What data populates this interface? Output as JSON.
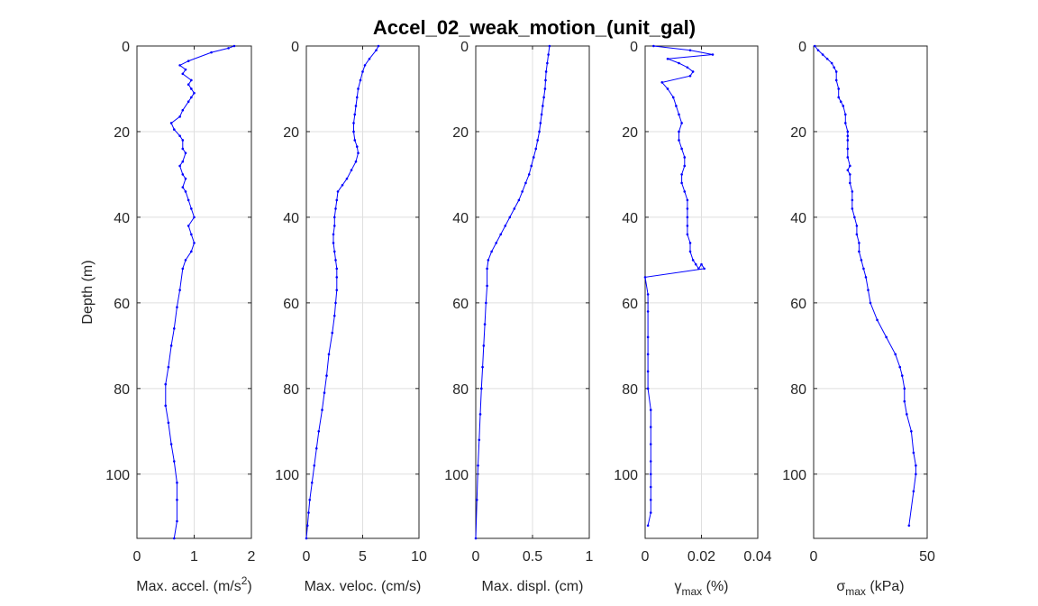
{
  "figure": {
    "title": "Accel_02_weak_motion_(unit_gal)",
    "ylabel": "Depth (m)",
    "line_color": "#0000ff"
  },
  "chart_data": [
    {
      "type": "line",
      "xlabel": "Max. accel. (m/s²)",
      "xlabel_parts": {
        "base": "Max. accel. (m/s",
        "sup": "2",
        "tail": ")"
      },
      "xlim": [
        0,
        2
      ],
      "xticks": [
        0,
        1,
        2
      ],
      "ylim": [
        0,
        115
      ],
      "yticks": [
        0,
        20,
        40,
        60,
        80,
        100
      ],
      "y_reversed": true,
      "x": [
        1.7,
        1.6,
        1.3,
        0.9,
        0.75,
        0.85,
        0.8,
        0.95,
        0.9,
        0.95,
        1.0,
        0.95,
        0.9,
        0.8,
        0.75,
        0.6,
        0.65,
        0.75,
        0.8,
        0.8,
        0.85,
        0.8,
        0.75,
        0.8,
        0.85,
        0.8,
        0.85,
        0.9,
        0.95,
        1.0,
        0.9,
        0.95,
        1.0,
        0.95,
        0.85,
        0.8,
        0.75,
        0.7,
        0.65,
        0.6,
        0.55,
        0.5,
        0.5,
        0.55,
        0.6,
        0.65,
        0.7,
        0.7,
        0.7,
        0.65
      ],
      "y": [
        0,
        0.5,
        1.5,
        3.5,
        4.5,
        5.5,
        6.5,
        8,
        9,
        10,
        11,
        12,
        13,
        15,
        16.5,
        18,
        19.5,
        21,
        22,
        24,
        25,
        27,
        28,
        30,
        31,
        33,
        34,
        36,
        38,
        40,
        42,
        44,
        46,
        48,
        50,
        52,
        57,
        61,
        66,
        70,
        75,
        79,
        84,
        88,
        93,
        97,
        102,
        106,
        111,
        115
      ]
    },
    {
      "type": "line",
      "xlabel": "Max. veloc. (cm/s)",
      "xlim": [
        0,
        10
      ],
      "xticks": [
        0,
        5,
        10
      ],
      "ylim": [
        0,
        115
      ],
      "yticks": [
        0,
        20,
        40,
        60,
        80,
        100
      ],
      "y_reversed": true,
      "x": [
        6.4,
        6.2,
        5.6,
        5.2,
        5.0,
        4.8,
        4.6,
        4.5,
        4.4,
        4.3,
        4.2,
        4.2,
        4.3,
        4.5,
        4.6,
        4.4,
        4.0,
        3.6,
        3.2,
        2.8,
        2.7,
        2.6,
        2.5,
        2.5,
        2.4,
        2.4,
        2.5,
        2.6,
        2.7,
        2.7,
        2.7,
        2.6,
        2.5,
        2.3,
        2.0,
        1.8,
        1.6,
        1.4,
        1.1,
        0.9,
        0.7,
        0.5,
        0.3,
        0.2,
        0.1,
        0.0
      ],
      "y": [
        0,
        1,
        3,
        4.5,
        6,
        8,
        10,
        12,
        14,
        16,
        18,
        20,
        22,
        23.5,
        25,
        27,
        29,
        31,
        32.5,
        34,
        36,
        38,
        40,
        42,
        44,
        46,
        48,
        50,
        52,
        54,
        57,
        60,
        63,
        67,
        72,
        77,
        81,
        85,
        90,
        94,
        98,
        102,
        106,
        109,
        112,
        115
      ]
    },
    {
      "type": "line",
      "xlabel": "Max. displ. (cm)",
      "xlim": [
        0,
        1
      ],
      "xticks": [
        0,
        0.5,
        1
      ],
      "ylim": [
        0,
        115
      ],
      "yticks": [
        0,
        20,
        40,
        60,
        80,
        100
      ],
      "y_reversed": true,
      "x": [
        0.65,
        0.64,
        0.63,
        0.62,
        0.615,
        0.61,
        0.6,
        0.59,
        0.58,
        0.57,
        0.56,
        0.545,
        0.53,
        0.51,
        0.49,
        0.47,
        0.44,
        0.41,
        0.38,
        0.34,
        0.3,
        0.26,
        0.22,
        0.18,
        0.14,
        0.11,
        0.1,
        0.1,
        0.09,
        0.08,
        0.07,
        0.06,
        0.05,
        0.04,
        0.03,
        0.02,
        0.01,
        0.0
      ],
      "y": [
        0,
        2,
        4,
        6,
        8,
        10,
        12,
        14,
        16,
        18,
        20,
        22,
        24,
        26,
        28,
        30,
        32,
        34,
        36,
        38,
        40,
        42,
        44,
        46,
        48,
        50,
        52,
        56,
        60,
        65,
        70,
        75,
        80,
        86,
        92,
        98,
        106,
        115
      ]
    },
    {
      "type": "line",
      "xlabel": "γmax (%)",
      "xlabel_parts": {
        "base": "γ",
        "sub": "max",
        "tail": " (%)"
      },
      "xlim": [
        0,
        0.04
      ],
      "xticks": [
        0,
        0.02,
        0.04
      ],
      "ylim": [
        0,
        115
      ],
      "yticks": [
        0,
        20,
        40,
        60,
        80,
        100
      ],
      "y_reversed": true,
      "x": [
        0.003,
        0.016,
        0.024,
        0.008,
        0.012,
        0.015,
        0.017,
        0.016,
        0.006,
        0.008,
        0.01,
        0.011,
        0.012,
        0.013,
        0.012,
        0.012,
        0.013,
        0.014,
        0.014,
        0.013,
        0.013,
        0.014,
        0.015,
        0.015,
        0.015,
        0.015,
        0.015,
        0.016,
        0.016,
        0.017,
        0.018,
        0.019,
        0.02,
        0.021,
        0.0,
        0.001,
        0.001,
        0.001,
        0.001,
        0.001,
        0.001,
        0.002,
        0.002,
        0.002,
        0.002,
        0.002,
        0.002,
        0.002,
        0.002,
        0.001
      ],
      "y": [
        0,
        1,
        2,
        3,
        4,
        5,
        6,
        7,
        8.5,
        10,
        12,
        14,
        16,
        18,
        20,
        22,
        24,
        26,
        28,
        30,
        32,
        34,
        36,
        38,
        40,
        42,
        44,
        46,
        48,
        50,
        51,
        52,
        51,
        52,
        54,
        58,
        62,
        68,
        72,
        76,
        80,
        85,
        89,
        93,
        97,
        100,
        103,
        106,
        109,
        112
      ]
    },
    {
      "type": "line",
      "xlabel": "σmax (kPa)",
      "xlabel_parts": {
        "base": "σ",
        "sub": "max",
        "tail": " (kPa)"
      },
      "xlim": [
        0,
        50
      ],
      "xticks": [
        0,
        50
      ],
      "ylim": [
        0,
        115
      ],
      "yticks": [
        0,
        20,
        40,
        60,
        80,
        100
      ],
      "y_reversed": true,
      "x": [
        0.5,
        2,
        4,
        6,
        8,
        9,
        10,
        10,
        11,
        11,
        12,
        13,
        14,
        14,
        15,
        15,
        15,
        15,
        15,
        16,
        15,
        16,
        16,
        17,
        17,
        17,
        18,
        19,
        19,
        20,
        20,
        21,
        22,
        23,
        24,
        25,
        28,
        32,
        36,
        38,
        39,
        40,
        40,
        41,
        43,
        44,
        45,
        45,
        44,
        42
      ],
      "y": [
        0,
        1,
        2,
        3,
        4,
        5,
        6,
        8,
        10,
        12,
        13,
        14,
        16,
        18,
        20,
        21,
        22,
        24,
        26,
        28,
        29,
        30,
        32,
        34,
        36,
        38,
        40,
        42,
        44,
        46,
        48,
        50,
        52,
        54,
        57,
        60,
        64,
        68,
        72,
        75,
        77,
        80,
        83,
        86,
        90,
        95,
        98,
        100,
        104,
        112
      ]
    }
  ]
}
